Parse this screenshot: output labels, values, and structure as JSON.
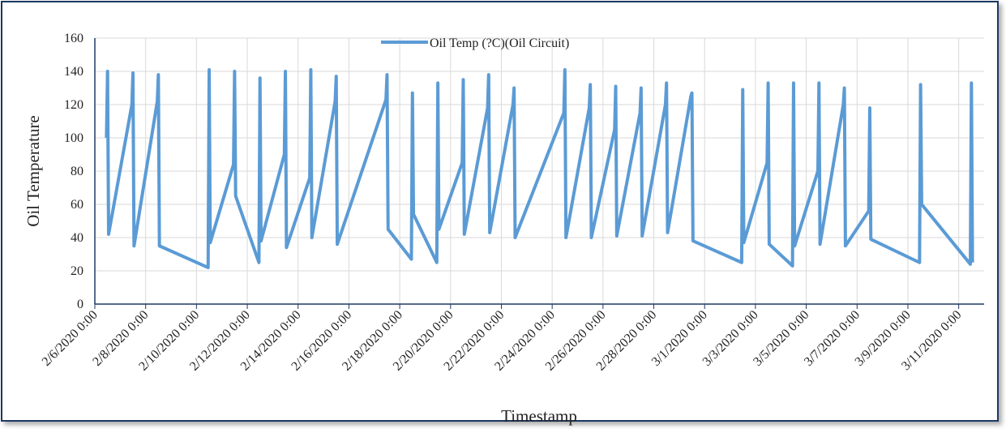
{
  "chart_data": {
    "type": "line",
    "y_label": "Oil Temperature",
    "x_label": "Timestamp",
    "legend": "top",
    "grid": true,
    "x": [
      "2020-02-06T11:00",
      "2020-02-06T12:00",
      "2020-02-06T13:00",
      "2020-02-07T11:00",
      "2020-02-07T12:00",
      "2020-02-07T13:00",
      "2020-02-08T11:00",
      "2020-02-08T12:00",
      "2020-02-08T13:00",
      "2020-02-10T11:00",
      "2020-02-10T12:00",
      "2020-02-10T13:00",
      "2020-02-11T11:00",
      "2020-02-11T12:00",
      "2020-02-11T13:00",
      "2020-02-12T11:00",
      "2020-02-12T12:00",
      "2020-02-12T13:00",
      "2020-02-13T11:00",
      "2020-02-13T12:00",
      "2020-02-13T13:00",
      "2020-02-14T11:00",
      "2020-02-14T12:00",
      "2020-02-14T13:00",
      "2020-02-15T11:00",
      "2020-02-15T12:00",
      "2020-02-15T13:00",
      "2020-02-17T11:00",
      "2020-02-17T12:00",
      "2020-02-17T13:00",
      "2020-02-18T11:00",
      "2020-02-18T12:00",
      "2020-02-18T13:00",
      "2020-02-19T11:00",
      "2020-02-19T12:00",
      "2020-02-19T13:00",
      "2020-02-20T11:00",
      "2020-02-20T12:00",
      "2020-02-20T13:00",
      "2020-02-21T11:00",
      "2020-02-21T12:00",
      "2020-02-21T13:00",
      "2020-02-22T11:00",
      "2020-02-22T12:00",
      "2020-02-22T13:00",
      "2020-02-24T11:00",
      "2020-02-24T12:00",
      "2020-02-24T13:00",
      "2020-02-25T11:00",
      "2020-02-25T12:00",
      "2020-02-25T13:00",
      "2020-02-26T11:00",
      "2020-02-26T12:00",
      "2020-02-26T13:00",
      "2020-02-27T11:00",
      "2020-02-27T12:00",
      "2020-02-27T13:00",
      "2020-02-28T11:00",
      "2020-02-28T12:00",
      "2020-02-28T13:00",
      "2020-02-29T11:00",
      "2020-02-29T12:00",
      "2020-02-29T13:00",
      "2020-03-02T11:00",
      "2020-03-02T12:00",
      "2020-03-02T13:00",
      "2020-03-03T11:00",
      "2020-03-03T12:00",
      "2020-03-03T13:00",
      "2020-03-04T11:00",
      "2020-03-04T12:00",
      "2020-03-04T13:00",
      "2020-03-05T11:00",
      "2020-03-05T12:00",
      "2020-03-05T13:00",
      "2020-03-06T11:00",
      "2020-03-06T12:00",
      "2020-03-06T13:00",
      "2020-03-07T11:00",
      "2020-03-07T12:00",
      "2020-03-07T13:00",
      "2020-03-09T11:00",
      "2020-03-09T12:00",
      "2020-03-09T13:00",
      "2020-03-11T11:00",
      "2020-03-11T12:00",
      "2020-03-11T13:00"
    ],
    "series": [
      {
        "name": "Oil Temp (?C)(Oil Circuit)",
        "color": "#5b9bd5",
        "values": [
          100,
          140,
          42,
          120,
          139,
          35,
          122,
          138,
          35,
          22,
          141,
          37,
          84,
          140,
          65,
          25,
          136,
          38,
          90,
          140,
          34,
          76,
          141,
          40,
          122,
          137,
          36,
          123,
          138,
          45,
          27,
          127,
          54,
          25,
          133,
          45,
          85,
          135,
          42,
          118,
          138,
          43,
          120,
          130,
          40,
          115,
          141,
          40,
          118,
          132,
          40,
          105,
          131,
          41,
          115,
          130,
          41,
          120,
          133,
          43,
          125,
          127,
          38,
          25,
          129,
          37,
          85,
          133,
          36,
          23,
          133,
          35,
          80,
          133,
          36,
          120,
          130,
          35,
          56,
          118,
          39,
          25,
          132,
          60,
          24,
          133,
          25
        ]
      }
    ],
    "xlim": [
      "2020-02-06T00:00",
      "2020-03-12T00:00"
    ],
    "xticks": [
      {
        "value": "2020-02-06T00:00",
        "label": "2/6/2020 0:00"
      },
      {
        "value": "2020-02-08T00:00",
        "label": "2/8/2020 0:00"
      },
      {
        "value": "2020-02-10T00:00",
        "label": "2/10/2020 0:00"
      },
      {
        "value": "2020-02-12T00:00",
        "label": "2/12/2020 0:00"
      },
      {
        "value": "2020-02-14T00:00",
        "label": "2/14/2020 0:00"
      },
      {
        "value": "2020-02-16T00:00",
        "label": "2/16/2020 0:00"
      },
      {
        "value": "2020-02-18T00:00",
        "label": "2/18/2020 0:00"
      },
      {
        "value": "2020-02-20T00:00",
        "label": "2/20/2020 0:00"
      },
      {
        "value": "2020-02-22T00:00",
        "label": "2/22/2020 0:00"
      },
      {
        "value": "2020-02-24T00:00",
        "label": "2/24/2020 0:00"
      },
      {
        "value": "2020-02-26T00:00",
        "label": "2/26/2020 0:00"
      },
      {
        "value": "2020-02-28T00:00",
        "label": "2/28/2020 0:00"
      },
      {
        "value": "2020-03-01T00:00",
        "label": "3/1/2020 0:00"
      },
      {
        "value": "2020-03-03T00:00",
        "label": "3/3/2020 0:00"
      },
      {
        "value": "2020-03-05T00:00",
        "label": "3/5/2020 0:00"
      },
      {
        "value": "2020-03-07T00:00",
        "label": "3/7/2020 0:00"
      },
      {
        "value": "2020-03-09T00:00",
        "label": "3/9/2020 0:00"
      },
      {
        "value": "2020-03-11T00:00",
        "label": "3/11/2020 0:00"
      }
    ],
    "ylim": [
      0,
      160
    ],
    "yticks": [
      0,
      20,
      40,
      60,
      80,
      100,
      120,
      140,
      160
    ]
  }
}
